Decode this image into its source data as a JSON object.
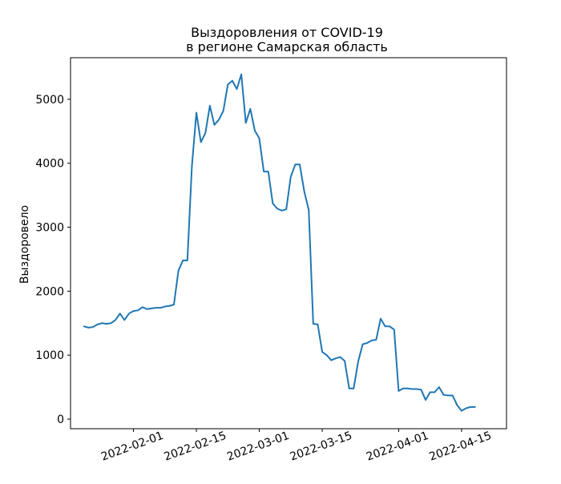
{
  "chart_data": {
    "type": "line",
    "title": "Выздоровления от COVID-19",
    "subtitle": "в регионе Самарская область",
    "xlabel": "",
    "ylabel": "Выздоровело",
    "x_ticks": [
      "2022-02-01",
      "2022-02-15",
      "2022-03-01",
      "2022-03-15",
      "2022-04-01",
      "2022-04-15"
    ],
    "y_ticks": [
      0,
      1000,
      2000,
      3000,
      4000,
      5000
    ],
    "xlim": [
      "2022-01-18",
      "2022-04-25"
    ],
    "ylim": [
      -150,
      5650
    ],
    "grid": false,
    "line_color": "#1f77b4",
    "series": [
      {
        "x": [
          "2022-01-21",
          "2022-01-22",
          "2022-01-23",
          "2022-01-24",
          "2022-01-25",
          "2022-01-26",
          "2022-01-27",
          "2022-01-28",
          "2022-01-29",
          "2022-01-30",
          "2022-01-31",
          "2022-02-01",
          "2022-02-02",
          "2022-02-03",
          "2022-02-04",
          "2022-02-05",
          "2022-02-06",
          "2022-02-07",
          "2022-02-08",
          "2022-02-09",
          "2022-02-10",
          "2022-02-11",
          "2022-02-12",
          "2022-02-13",
          "2022-02-14",
          "2022-02-15",
          "2022-02-16",
          "2022-02-17",
          "2022-02-18",
          "2022-02-19",
          "2022-02-20",
          "2022-02-21",
          "2022-02-22",
          "2022-02-23",
          "2022-02-24",
          "2022-02-25",
          "2022-02-26",
          "2022-02-27",
          "2022-02-28",
          "2022-03-01",
          "2022-03-02",
          "2022-03-03",
          "2022-03-04",
          "2022-03-05",
          "2022-03-06",
          "2022-03-07",
          "2022-03-08",
          "2022-03-09",
          "2022-03-10",
          "2022-03-11",
          "2022-03-12",
          "2022-03-13",
          "2022-03-14",
          "2022-03-15",
          "2022-03-16",
          "2022-03-17",
          "2022-03-18",
          "2022-03-19",
          "2022-03-20",
          "2022-03-21",
          "2022-03-22",
          "2022-03-23",
          "2022-03-24",
          "2022-03-25",
          "2022-03-26",
          "2022-03-27",
          "2022-03-28",
          "2022-03-29",
          "2022-03-30",
          "2022-03-31",
          "2022-04-01",
          "2022-04-02",
          "2022-04-03",
          "2022-04-04",
          "2022-04-05",
          "2022-04-06",
          "2022-04-07",
          "2022-04-08",
          "2022-04-09",
          "2022-04-10",
          "2022-04-11",
          "2022-04-12",
          "2022-04-13",
          "2022-04-14",
          "2022-04-15",
          "2022-04-16",
          "2022-04-17",
          "2022-04-18",
          "2022-04-19",
          "2022-04-20"
        ],
        "values": [
          1450,
          1430,
          1440,
          1480,
          1500,
          1490,
          1500,
          1550,
          1650,
          1550,
          1650,
          1690,
          1700,
          1750,
          1720,
          1730,
          1740,
          1740,
          1760,
          1770,
          1790,
          2320,
          2480,
          2480,
          3950,
          4790,
          4330,
          4470,
          4900,
          4600,
          4680,
          4820,
          5230,
          5290,
          5160,
          5390,
          4630,
          4850,
          4510,
          4390,
          3870,
          3870,
          3370,
          3290,
          3260,
          3280,
          3790,
          3980,
          3980,
          3560,
          3270,
          1490,
          1480,
          1050,
          1000,
          920,
          950,
          970,
          910,
          480,
          480,
          900,
          1170,
          1190,
          1230,
          1240,
          1570,
          1450,
          1450,
          1400,
          440,
          480,
          480,
          470,
          470,
          460,
          300,
          420,
          420,
          500,
          380,
          370,
          370,
          220,
          130,
          170,
          190,
          190,
          null,
          null
        ]
      }
    ]
  }
}
